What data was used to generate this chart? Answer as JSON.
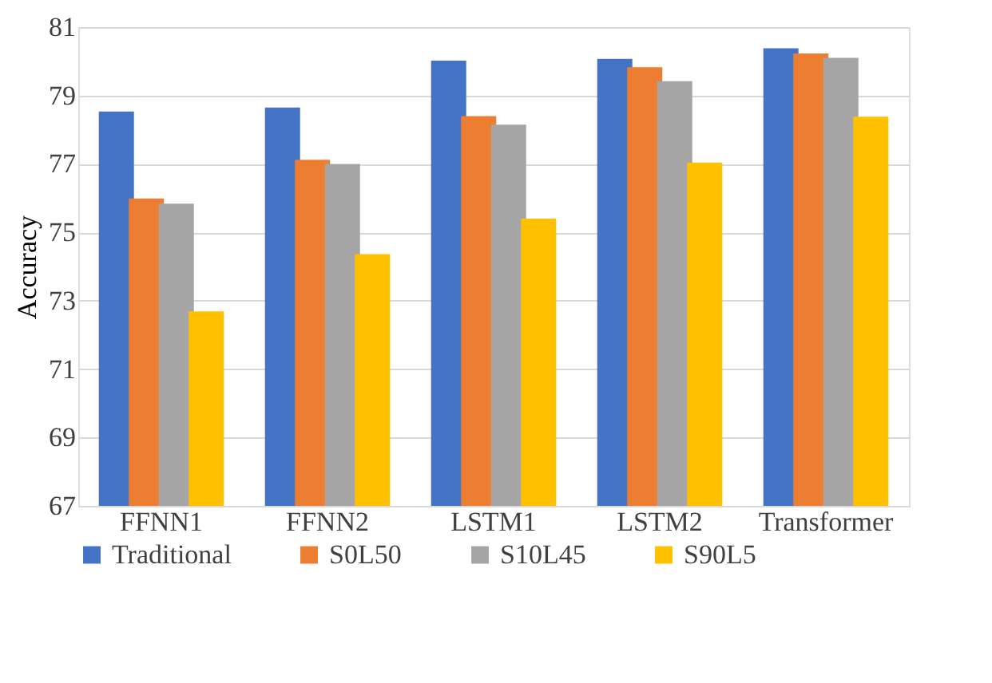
{
  "chart_data": {
    "type": "bar",
    "ylabel": "Accuracy",
    "categories": [
      "FFNN1",
      "FFNN2",
      "LSTM1",
      "LSTM2",
      "Transformer"
    ],
    "series": [
      {
        "name": "Traditional",
        "color": "#4472c4",
        "values": [
          78.53,
          78.65,
          80.02,
          80.07,
          80.38
        ]
      },
      {
        "name": "S0L50",
        "color": "#ed7d31",
        "values": [
          75.99,
          77.12,
          78.4,
          79.83,
          80.23
        ]
      },
      {
        "name": "S10L45",
        "color": "#a5a5a5",
        "values": [
          75.84,
          77.0,
          78.15,
          79.42,
          80.1
        ]
      },
      {
        "name": "S90L5",
        "color": "#ffc000",
        "values": [
          72.69,
          74.36,
          75.4,
          77.04,
          78.38
        ]
      }
    ],
    "ylim": [
      67,
      81
    ],
    "yticks": [
      67,
      69,
      71,
      73,
      75,
      77,
      79,
      81
    ],
    "grid": "y",
    "legend": "bottom"
  }
}
